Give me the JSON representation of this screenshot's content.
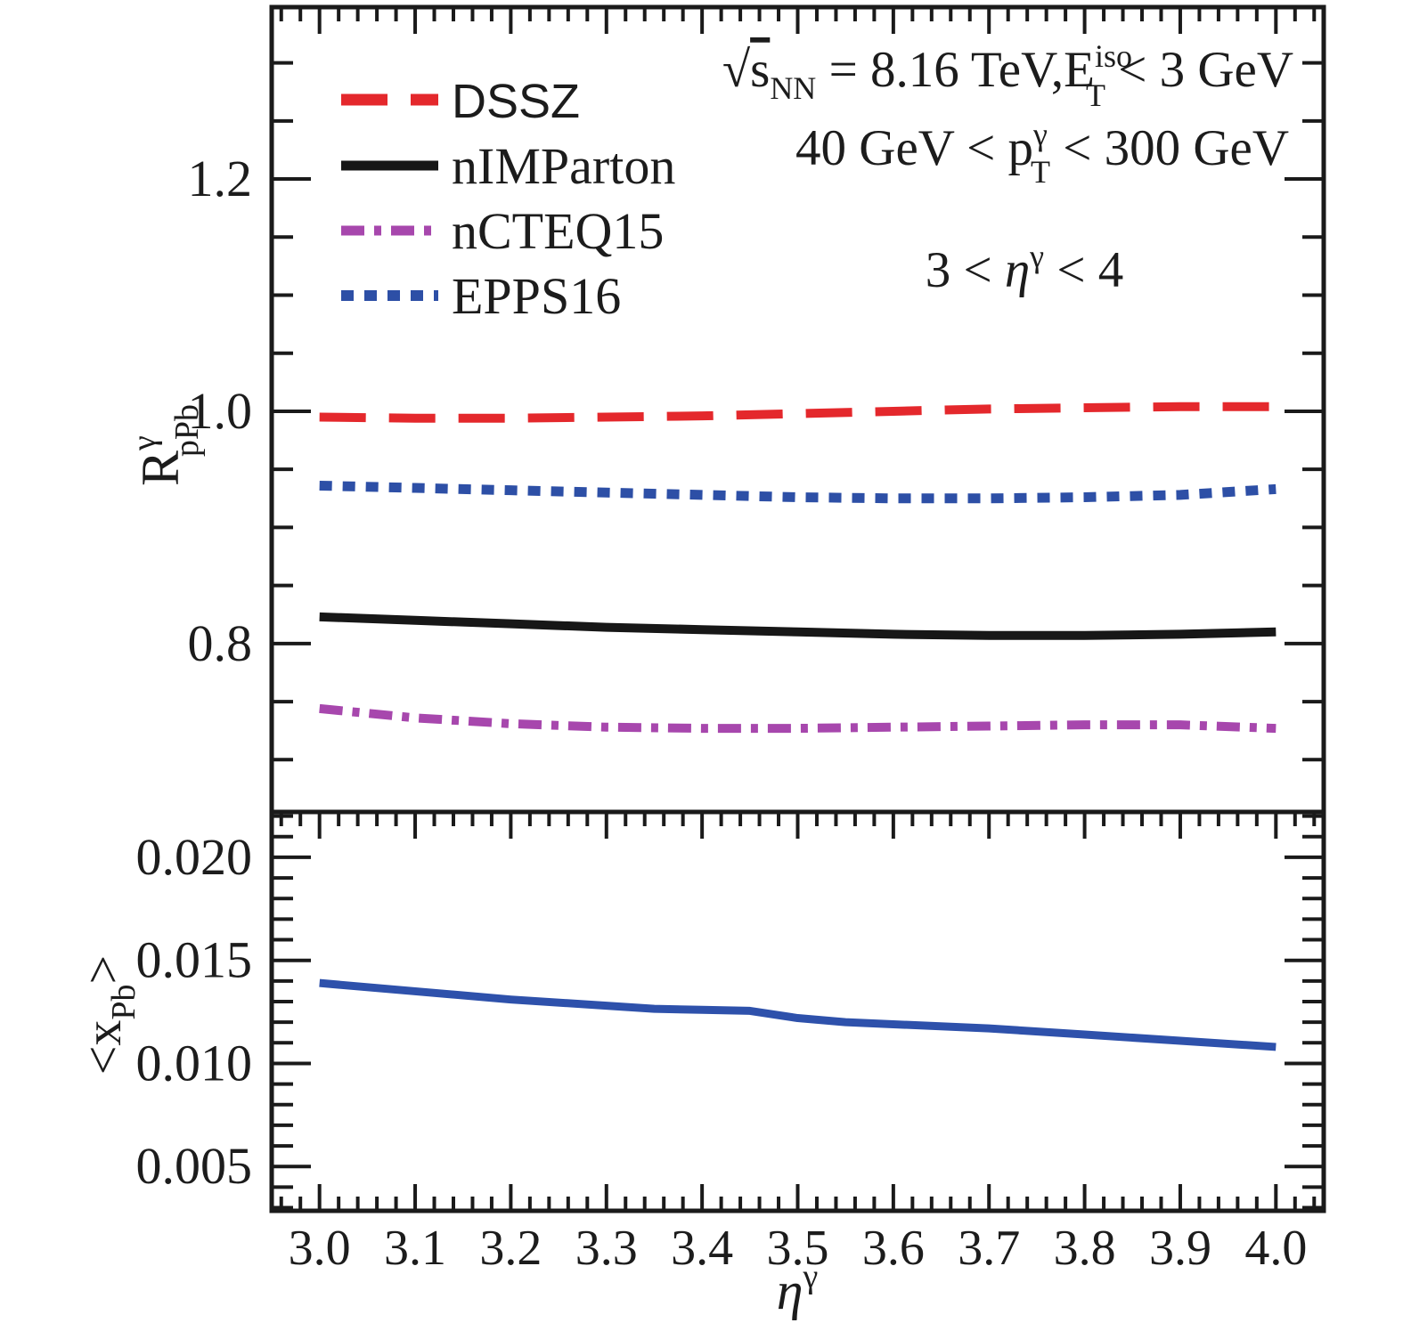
{
  "colors": {
    "frame": "#1a1a1a",
    "red": "#e4282c",
    "black": "#171717",
    "purple": "#a747ad",
    "blue": "#2d4fa6",
    "curve_blue": "#2e51ab"
  },
  "legend": {
    "items": [
      {
        "label": "DSSZ",
        "color_key": "red",
        "dash": "52 26",
        "width": 13,
        "font": "sans"
      },
      {
        "label": "nIMParton",
        "color_key": "black",
        "dash": "",
        "width": 11,
        "font": "serif"
      },
      {
        "label": "nCTEQ15",
        "color_key": "purple",
        "dash": "26 11 8 11",
        "width": 11,
        "font": "serif"
      },
      {
        "label": "EPPS16",
        "color_key": "blue",
        "dash": "14 12",
        "width": 12,
        "font": "serif"
      }
    ]
  },
  "annotations": {
    "line1": {
      "sqrt": "√",
      "s": "s",
      "sub": "NN",
      "mid": " = 8.16 TeV,E",
      "sup": "iso",
      "sub2": "T",
      "tail": " < 3 GeV"
    },
    "line2": {
      "pre": "40 GeV < p",
      "sup": "γ",
      "sub": "T",
      "tail": " < 300 GeV"
    },
    "line3": {
      "pre": "3 < ",
      "eta": "η",
      "sup": "γ",
      "tail": " < 4"
    }
  },
  "axes": {
    "x": {
      "title_eta": "η",
      "title_sup": "γ",
      "major_values": [
        3.0,
        3.1,
        3.2,
        3.3,
        3.4,
        3.5,
        3.6,
        3.7,
        3.8,
        3.9,
        4.0
      ],
      "major_labels": [
        "3.0",
        "3.1",
        "3.2",
        "3.3",
        "3.4",
        "3.5",
        "3.6",
        "3.7",
        "3.8",
        "3.9",
        "4.0"
      ],
      "minor_step": 0.02
    },
    "y_top": {
      "title": {
        "base": "R",
        "sup": "γ",
        "sub": "pPb"
      },
      "major_values": [
        0.8,
        1.0,
        1.2
      ],
      "major_labels": [
        "0.8",
        "1.0",
        "1.2"
      ],
      "minor_step": 0.05
    },
    "y_bottom": {
      "title": {
        "pre": "<x",
        "sub": "Pb",
        "post": ">"
      },
      "major_values": [
        0.005,
        0.01,
        0.015,
        0.02
      ],
      "major_labels": [
        "0.005",
        "0.010",
        "0.015",
        "0.020"
      ],
      "minor_step": 0.001
    }
  },
  "chart_data": [
    {
      "type": "line",
      "panel": "top",
      "title": "",
      "xlabel": "",
      "ylabel": "R^γ_pPb",
      "xlim": [
        2.95,
        4.05
      ],
      "ylim": [
        0.655,
        1.348
      ],
      "grid": false,
      "legend_position": "top-left",
      "x": [
        3.0,
        3.1,
        3.2,
        3.3,
        3.4,
        3.5,
        3.6,
        3.7,
        3.8,
        3.9,
        4.0
      ],
      "series": [
        {
          "name": "DSSZ",
          "color_key": "red",
          "dash": "52 26",
          "width": 10,
          "values": [
            0.995,
            0.994,
            0.994,
            0.995,
            0.996,
            0.998,
            1.0,
            1.002,
            1.003,
            1.004,
            1.004
          ]
        },
        {
          "name": "nIMParton",
          "color_key": "black",
          "dash": "",
          "width": 10,
          "values": [
            0.823,
            0.82,
            0.817,
            0.814,
            0.812,
            0.81,
            0.808,
            0.807,
            0.807,
            0.808,
            0.81
          ]
        },
        {
          "name": "nCTEQ15",
          "color_key": "purple",
          "dash": "26 11 8 11",
          "width": 10,
          "values": [
            0.744,
            0.736,
            0.731,
            0.728,
            0.727,
            0.727,
            0.728,
            0.729,
            0.73,
            0.73,
            0.727
          ]
        },
        {
          "name": "EPPS16",
          "color_key": "blue",
          "dash": "14 12",
          "width": 11,
          "values": [
            0.936,
            0.934,
            0.932,
            0.93,
            0.928,
            0.926,
            0.925,
            0.925,
            0.926,
            0.928,
            0.933
          ]
        }
      ]
    },
    {
      "type": "line",
      "panel": "bottom",
      "title": "",
      "xlabel": "η^γ",
      "ylabel": "<x_Pb>",
      "xlim": [
        2.95,
        4.05
      ],
      "ylim": [
        0.00285,
        0.0222
      ],
      "grid": false,
      "x": [
        3.0,
        3.1,
        3.2,
        3.3,
        3.35,
        3.4,
        3.45,
        3.5,
        3.55,
        3.6,
        3.7,
        3.8,
        3.9,
        4.0
      ],
      "series": [
        {
          "name": "<x_Pb>",
          "color_key": "curve_blue",
          "dash": "",
          "width": 9,
          "values": [
            0.0139,
            0.0135,
            0.0131,
            0.0128,
            0.01265,
            0.0126,
            0.01255,
            0.0122,
            0.012,
            0.0119,
            0.0117,
            0.0114,
            0.0111,
            0.0108
          ]
        }
      ]
    }
  ]
}
